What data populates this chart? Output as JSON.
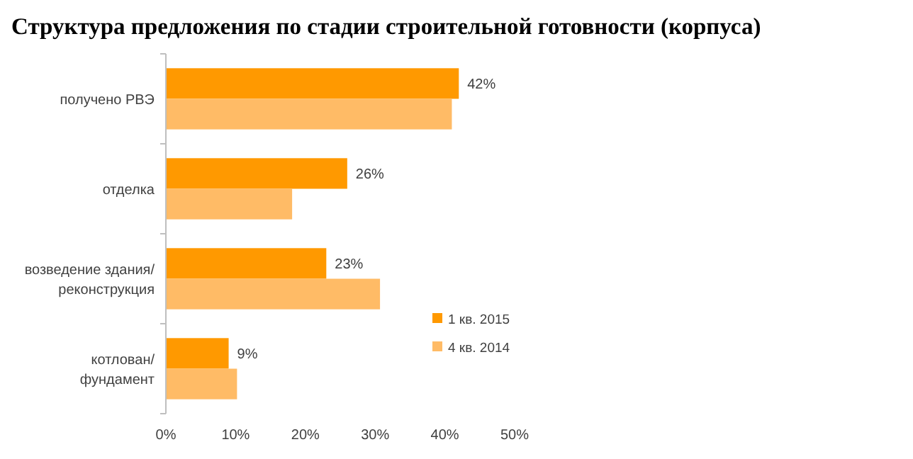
{
  "chart_data": {
    "type": "bar",
    "orientation": "horizontal",
    "title": "Структура предложения по стадии строительной готовности (корпуса)",
    "categories": [
      "получено РВЭ",
      "отделка",
      "возведение здания/ реконструкция",
      "котлован/ фундамент"
    ],
    "series": [
      {
        "name": "1 кв. 2015",
        "color": "#ff9900",
        "values": [
          42,
          26,
          23,
          9
        ],
        "value_labels": [
          "42%",
          "26%",
          "23%",
          "9%"
        ]
      },
      {
        "name": "4 кв. 2014",
        "color": "#ffbb66",
        "values": [
          41,
          18.1,
          30.7,
          10.2
        ]
      }
    ],
    "xlim": [
      0,
      50
    ],
    "xticks": [
      {
        "value": 0,
        "label": "0%"
      },
      {
        "value": 10,
        "label": "10%"
      },
      {
        "value": 20,
        "label": "20%"
      },
      {
        "value": 30,
        "label": "30%"
      },
      {
        "value": 40,
        "label": "40%"
      },
      {
        "value": 50,
        "label": "50%"
      }
    ],
    "grid": false,
    "legend": "bottom right"
  }
}
